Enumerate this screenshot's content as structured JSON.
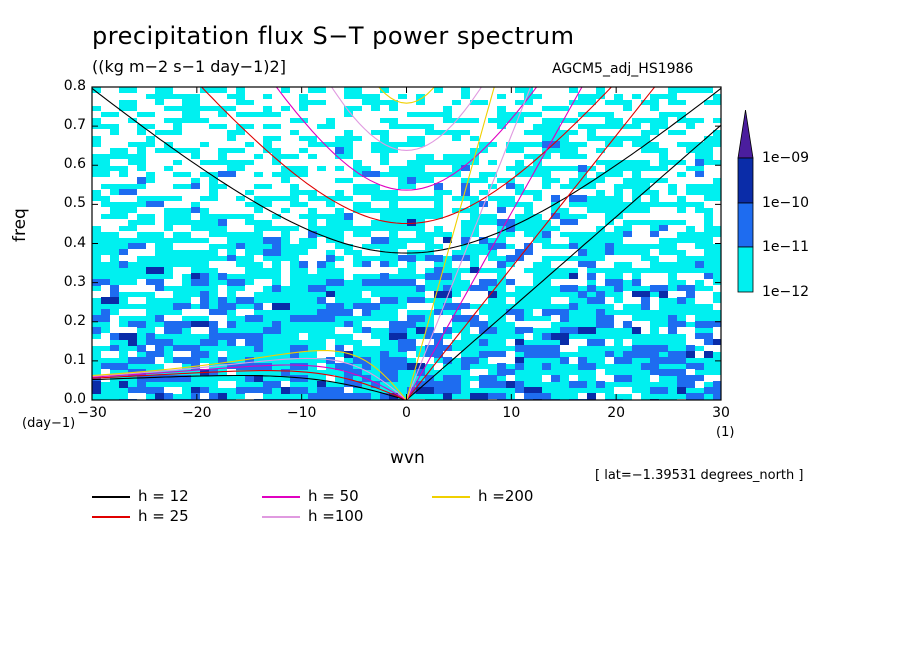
{
  "chart_data": {
    "type": "heatmap",
    "title": "precipitation flux S−T power spectrum",
    "units_label": "((kg m−2 s−1 day−1)2]",
    "experiment": "AGCM5_adj_HS1986",
    "xlabel": "wvn",
    "ylabel": "freq",
    "x_unit": "(1)",
    "y_unit": "(day−1)",
    "xlim": [
      -30,
      30
    ],
    "ylim": [
      0,
      0.8
    ],
    "x_ticks": [
      "−30",
      "−20",
      "−10",
      "0",
      "10",
      "20",
      "30"
    ],
    "x_tick_values": [
      -30,
      -20,
      -10,
      0,
      10,
      20,
      30
    ],
    "y_ticks": [
      "0.0",
      "0.1",
      "0.2",
      "0.3",
      "0.4",
      "0.5",
      "0.6",
      "0.7",
      "0.8"
    ],
    "y_tick_values": [
      0,
      0.1,
      0.2,
      0.3,
      0.4,
      0.5,
      0.6,
      0.7,
      0.8
    ],
    "colorbar": {
      "labels": [
        "1e−09",
        "1e−10",
        "1e−11",
        "1e−12"
      ],
      "levels": [
        1e-09,
        1e-10,
        1e-11,
        1e-12
      ],
      "colors": [
        "#4b1e9e",
        "#0a2ca8",
        "#1e6cf0",
        "#00f0f0"
      ]
    },
    "note": "[ lat=−1.39531 degrees_north ]",
    "dispersion_curves": [
      {
        "name": "h = 12",
        "h": 12,
        "color": "#000000"
      },
      {
        "name": "h = 25",
        "h": 25,
        "color": "#e00000"
      },
      {
        "name": "h = 50",
        "h": 50,
        "color": "#e000c0"
      },
      {
        "name": "h =100",
        "h": 100,
        "color": "#e09ae0"
      },
      {
        "name": "h =200",
        "h": 200,
        "color": "#f0d000"
      }
    ],
    "background_colors": {
      "low": "#ffffff",
      "band1": "#00f0f0",
      "band2": "#1e6cf0",
      "band3": "#0a2ca8"
    }
  }
}
